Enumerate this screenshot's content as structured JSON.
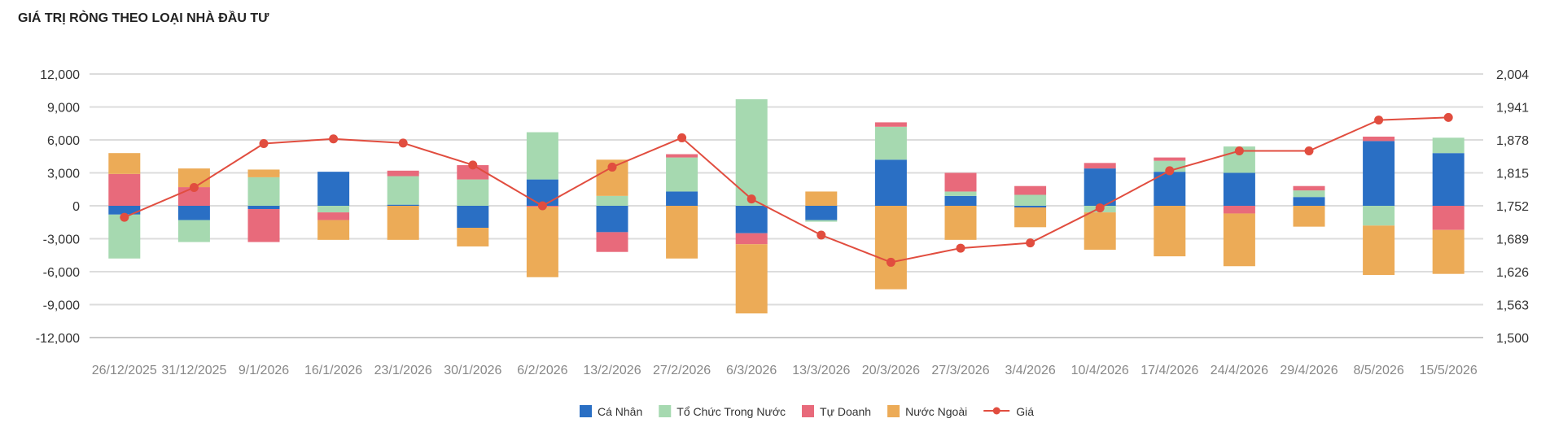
{
  "chart_data": {
    "type": "bar",
    "stacked": true,
    "title": "GIÁ TRỊ RÒNG THEO LOẠI NHÀ ĐẦU TƯ",
    "categories": [
      "26/12/2025",
      "31/12/2025",
      "9/1/2026",
      "16/1/2026",
      "23/1/2026",
      "30/1/2026",
      "6/2/2026",
      "13/2/2026",
      "27/2/2026",
      "6/3/2026",
      "13/3/2026",
      "20/3/2026",
      "27/3/2026",
      "3/4/2026",
      "10/4/2026",
      "17/4/2026",
      "24/4/2026",
      "29/4/2026",
      "8/5/2026",
      "15/5/2026"
    ],
    "series": [
      {
        "name": "Cá Nhân",
        "color": "#2a6fc4",
        "values": [
          -800,
          -1300,
          -300,
          3100,
          100,
          -2000,
          2400,
          -2400,
          1300,
          -2500,
          -1300,
          4200,
          900,
          -150,
          3400,
          3100,
          3000,
          800,
          5900,
          4800
        ]
      },
      {
        "name": "Tổ Chức Trong Nước",
        "color": "#a6d9b0",
        "values": [
          -4000,
          -2000,
          2600,
          -600,
          2600,
          2400,
          4300,
          900,
          3100,
          9700,
          -150,
          3000,
          400,
          1000,
          -600,
          1000,
          2400,
          600,
          -1800,
          1400
        ]
      },
      {
        "name": "Tự Doanh",
        "color": "#e86a7b",
        "values": [
          2900,
          1700,
          -3000,
          -700,
          500,
          1300,
          -100,
          -1800,
          300,
          -1000,
          0,
          400,
          1700,
          800,
          500,
          300,
          -700,
          400,
          400,
          -2200
        ]
      },
      {
        "name": "Nước Ngoài",
        "color": "#ecab57",
        "values": [
          1900,
          1700,
          700,
          -1800,
          -3100,
          -1700,
          -6400,
          3300,
          -4800,
          -6300,
          1300,
          -7600,
          -3100,
          -1800,
          -3400,
          -4600,
          -4800,
          -1900,
          -4500,
          -4000
        ]
      }
    ],
    "line_series": {
      "name": "Giá",
      "color": "#e14d3f",
      "values": [
        1730,
        1787,
        1871,
        1880,
        1872,
        1830,
        1752,
        1826,
        1882,
        1765,
        1696,
        1644,
        1671,
        1681,
        1748,
        1819,
        1857,
        1857,
        1916,
        1921
      ]
    },
    "y_left": {
      "min": -12000,
      "max": 12000,
      "ticks": [
        12000,
        9000,
        6000,
        3000,
        0,
        -3000,
        -6000,
        -9000,
        -12000
      ],
      "tick_labels": [
        "12,000",
        "9,000",
        "6,000",
        "3,000",
        "0",
        "-3,000",
        "-6,000",
        "-9,000",
        "-12,000"
      ]
    },
    "y_right": {
      "min": 1500,
      "max": 2004,
      "ticks": [
        2004,
        1941,
        1878,
        1815,
        1752,
        1689,
        1626,
        1563,
        1500
      ],
      "tick_labels": [
        "2,004",
        "1,941",
        "1,878",
        "1,815",
        "1,752",
        "1,689",
        "1,626",
        "1,563",
        "1,500"
      ]
    },
    "grid": true,
    "legend_position": "bottom-center"
  }
}
